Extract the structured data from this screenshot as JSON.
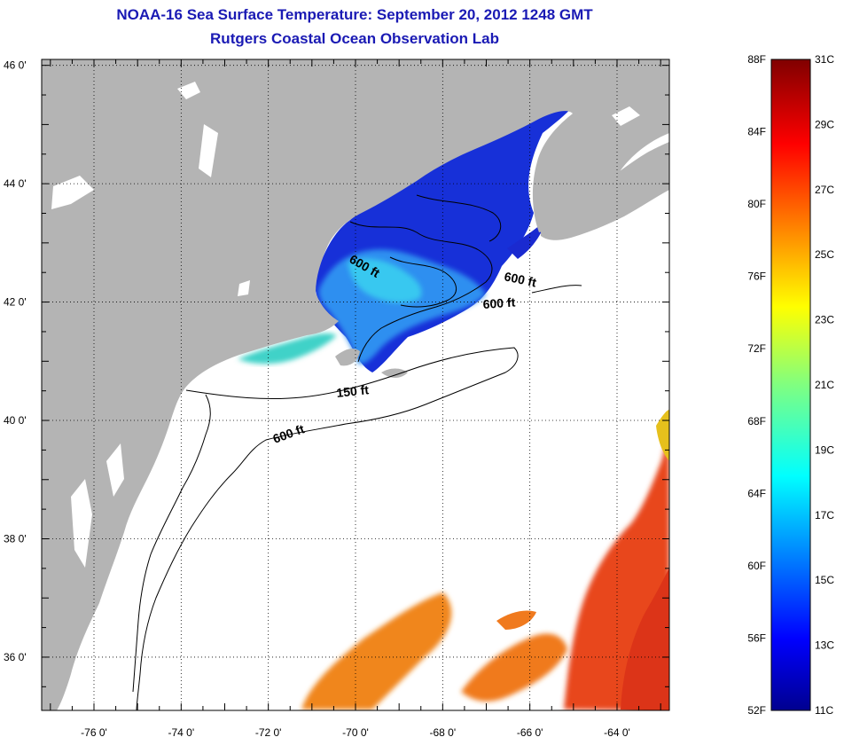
{
  "title": "NOAA-16 Sea Surface Temperature:  September 20, 2012 1248 GMT",
  "subtitle": "Rutgers Coastal Ocean Observation Lab",
  "map": {
    "lat_labels": [
      "46 0'",
      "44 0'",
      "42 0'",
      "40 0'",
      "38 0'",
      "36 0'"
    ],
    "lat_values": [
      46,
      44,
      42,
      40,
      38,
      36
    ],
    "lon_labels": [
      "-76 0'",
      "-74 0'",
      "-72 0'",
      "-70 0'",
      "-68 0'",
      "-66 0'",
      "-64 0'"
    ],
    "lon_values": [
      -76,
      -74,
      -72,
      -70,
      -68,
      -66,
      -64
    ],
    "lat_range": [
      35.1,
      46.1
    ],
    "lon_range": [
      -77.2,
      -62.8
    ],
    "contour_labels": [
      "600 ft",
      "600 ft",
      "600 ft",
      "150 ft",
      "600 ft"
    ],
    "colors": {
      "land": "#b4b4b4",
      "cold": "#1426d6",
      "mid": "#26b4f0",
      "warm": "#f07a1e",
      "hot": "#e8401a"
    }
  },
  "colorbar": {
    "fahrenheit": [
      "88F",
      "84F",
      "80F",
      "76F",
      "72F",
      "68F",
      "64F",
      "60F",
      "56F",
      "52F"
    ],
    "celsius": [
      "31C",
      "29C",
      "27C",
      "25C",
      "23C",
      "21C",
      "19C",
      "17C",
      "15C",
      "13C",
      "11C"
    ]
  }
}
